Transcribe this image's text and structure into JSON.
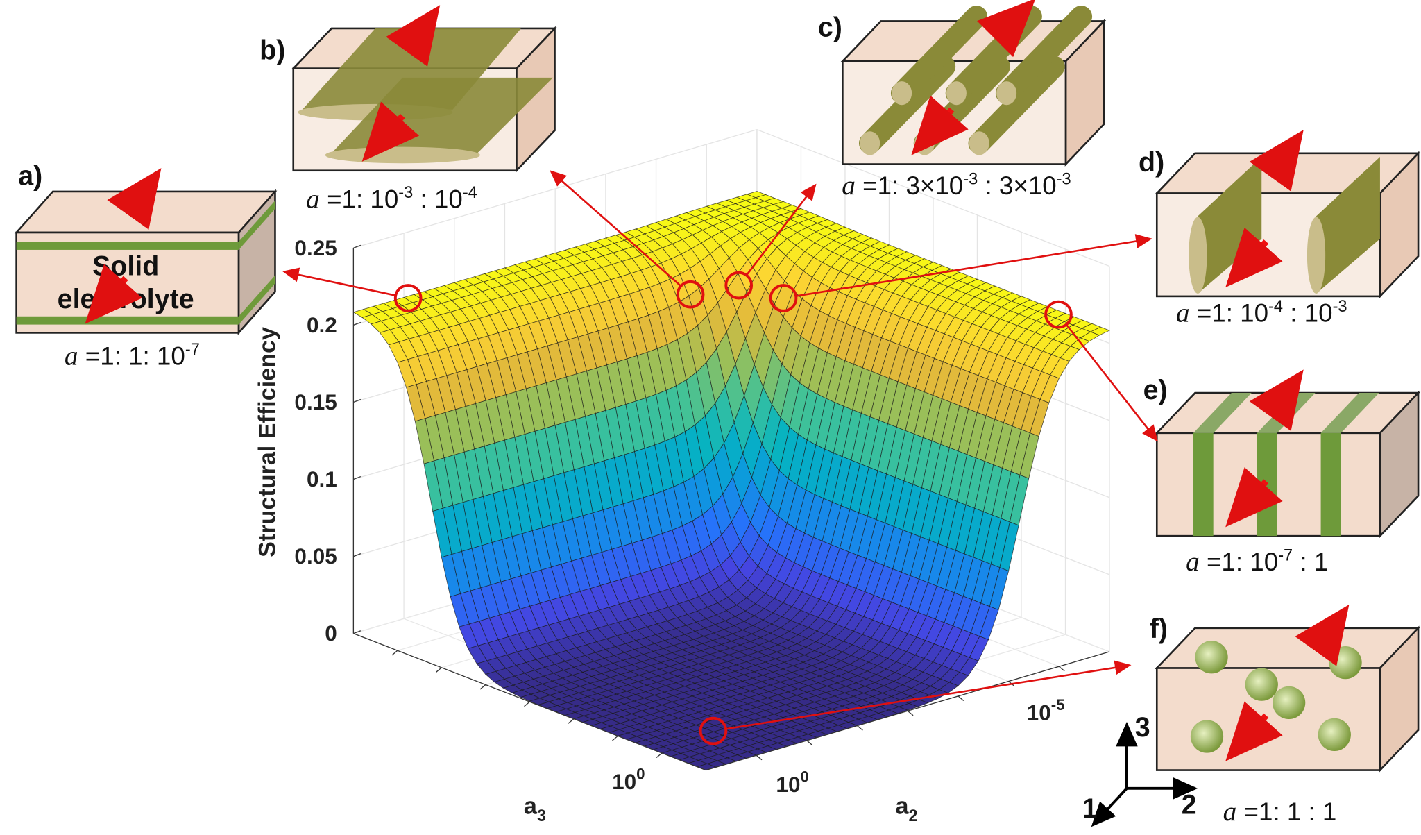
{
  "chart_data": {
    "type": "surface",
    "zlabel": "Structural Efficiency",
    "xlabel": "a3",
    "ylabel": "a2",
    "xlabel_sub": "3",
    "ylabel_sub": "2",
    "ztick_labels": [
      "0",
      "0.05",
      "0.1",
      "0.15",
      "0.2",
      "0.25"
    ],
    "zlim": [
      0,
      0.25
    ],
    "a3_ticks": [
      {
        "base": "10",
        "exp": "0"
      }
    ],
    "a2_ticks": [
      {
        "base": "10",
        "exp": "0"
      },
      {
        "base": "10",
        "exp": "-5"
      }
    ],
    "plateau_value": 0.21,
    "minimum_value": 0,
    "colormap": "parula",
    "grid": true
  },
  "panels": [
    {
      "id": "a",
      "label": "a)",
      "structure": "layers",
      "inner_text": [
        "Solid",
        "electrolyte"
      ],
      "caption": [
        {
          "t": "a",
          "i": true
        },
        {
          "t": " =1: 1: 10"
        },
        {
          "t": "-7",
          "sup": true
        }
      ]
    },
    {
      "id": "b",
      "label": "b)",
      "structure": "plates",
      "caption": [
        {
          "t": "a",
          "i": true
        },
        {
          "t": " =1: 10"
        },
        {
          "t": "-3",
          "sup": true
        },
        {
          "t": " : 10"
        },
        {
          "t": "-4",
          "sup": true
        }
      ]
    },
    {
      "id": "c",
      "label": "c)",
      "structure": "fibers",
      "caption": [
        {
          "t": "a",
          "i": true
        },
        {
          "t": " =1: 3×10"
        },
        {
          "t": "-3",
          "sup": true
        },
        {
          "t": " : 3×10"
        },
        {
          "t": "-3",
          "sup": true
        }
      ]
    },
    {
      "id": "d",
      "label": "d)",
      "structure": "discs",
      "caption": [
        {
          "t": "a",
          "i": true
        },
        {
          "t": " =1: 10"
        },
        {
          "t": "-4",
          "sup": true
        },
        {
          "t": " : 10"
        },
        {
          "t": "-3",
          "sup": true
        }
      ]
    },
    {
      "id": "e",
      "label": "e)",
      "structure": "vertical-layers",
      "caption": [
        {
          "t": "a",
          "i": true
        },
        {
          "t": " =1: 10"
        },
        {
          "t": "-7",
          "sup": true
        },
        {
          "t": " : 1"
        }
      ]
    },
    {
      "id": "f",
      "label": "f)",
      "structure": "spheres",
      "caption": [
        {
          "t": "a",
          "i": true
        },
        {
          "t": " =1: 1 : 1"
        }
      ]
    }
  ],
  "axes_triad": {
    "labels": [
      "1",
      "2",
      "3"
    ]
  },
  "colors": {
    "box_fill": "#f3dccc",
    "box_side": "#e8c9b5",
    "fiber": "#8a8a38",
    "layer": "#6e9a3a",
    "arrow": "#ee1111",
    "marker": "#e01010"
  }
}
